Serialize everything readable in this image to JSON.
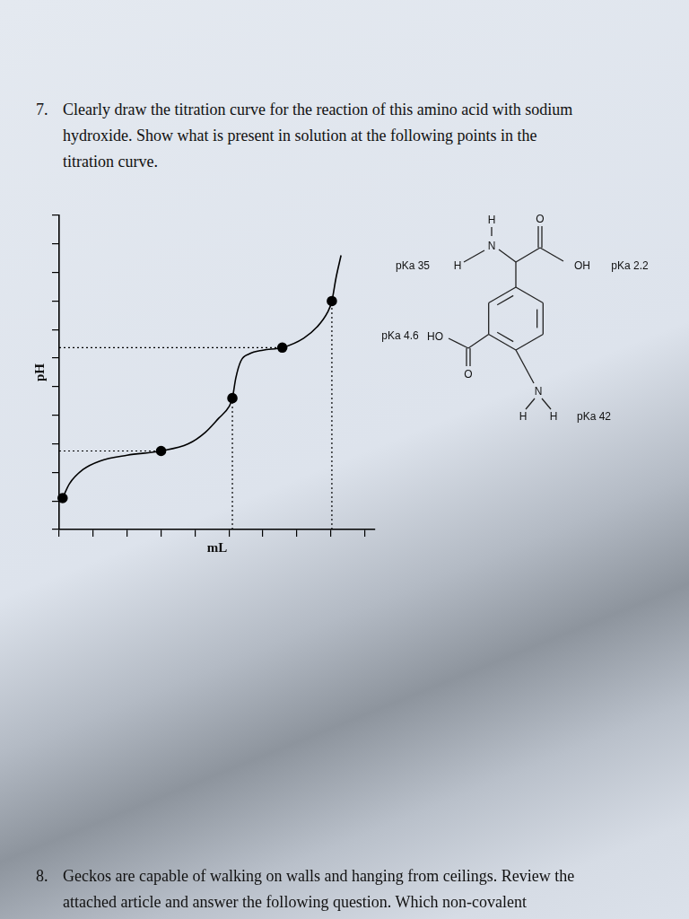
{
  "question_7": {
    "number": "7.",
    "lines": [
      "Clearly draw the titration curve for the reaction of this amino acid with sodium",
      "hydroxide.  Show what is present in solution at the following points in the",
      "titration curve."
    ]
  },
  "chart_data": {
    "type": "line",
    "x_label": "mL",
    "y_label": "pH",
    "xlim": [
      0,
      9.3
    ],
    "xticks": [
      0,
      1,
      2,
      3,
      4,
      5,
      6,
      7,
      8,
      9
    ],
    "ylim": [
      0,
      11
    ],
    "yticks": [
      0,
      1,
      2,
      3,
      4,
      5,
      6,
      7,
      8,
      9,
      10,
      11
    ],
    "grid": false,
    "tick_labels": false,
    "legend": "none",
    "series": [
      {
        "color": "#000000",
        "line_style": "solid",
        "marker": "none",
        "x": [
          0.1,
          0.3,
          0.7,
          1.2,
          2.0,
          3.0,
          3.8,
          4.3,
          4.7,
          5.0,
          5.1,
          5.2,
          5.35,
          5.6,
          6.0,
          6.57,
          7.2,
          7.6,
          7.9,
          8.03,
          8.15,
          8.3
        ],
        "values": [
          1.1,
          1.6,
          2.1,
          2.4,
          2.6,
          2.75,
          3.0,
          3.4,
          3.9,
          4.3,
          4.6,
          5.3,
          5.9,
          6.15,
          6.28,
          6.37,
          6.7,
          7.1,
          7.6,
          8.0,
          8.8,
          9.6
        ]
      },
      {
        "color": "#000000",
        "line_style": "none",
        "marker": "circle",
        "x": [
          0.1,
          3.0,
          5.1,
          6.57,
          8.03
        ],
        "values": [
          1.1,
          2.75,
          4.6,
          6.37,
          8.0
        ]
      },
      {
        "color": "#000000",
        "line_style": "dotted",
        "marker": "none",
        "x": [
          0,
          3.0
        ],
        "values": [
          2.75,
          2.75
        ]
      },
      {
        "color": "#000000",
        "line_style": "dotted",
        "marker": "none",
        "x": [
          0,
          6.57
        ],
        "values": [
          6.37,
          6.37
        ]
      },
      {
        "color": "#000000",
        "line_style": "dotted",
        "marker": "none",
        "x": [
          5.1,
          5.1
        ],
        "values": [
          0,
          4.6
        ]
      },
      {
        "color": "#000000",
        "line_style": "dotted",
        "marker": "none",
        "x": [
          8.03,
          8.03
        ],
        "values": [
          0,
          8.0
        ]
      }
    ]
  },
  "molecule": {
    "atoms": [
      "H",
      "N",
      "H",
      "O",
      "OH",
      "HO",
      "O",
      "N",
      "H",
      "H"
    ],
    "pka_labels": [
      "pKa 35",
      "pKa 2.2",
      "pKa 4.6",
      "pKa 42"
    ]
  },
  "question_8": {
    "number": "8.",
    "lines": [
      "Geckos are capable of walking on walls and hanging from ceilings. Review the",
      "attached article and answer the following question. Which non-covalent"
    ]
  }
}
